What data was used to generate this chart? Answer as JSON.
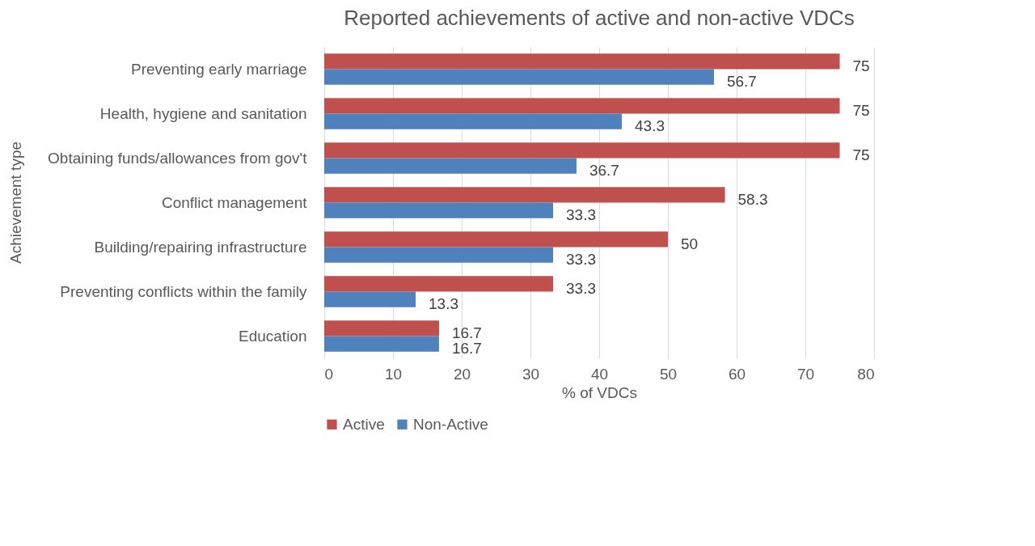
{
  "chart_data": {
    "type": "bar",
    "orientation": "horizontal",
    "title": "Reported achievements of active and non-active VDCs",
    "xlabel": "% of VDCs",
    "ylabel": "Achievement type",
    "categories": [
      "Preventing early marriage",
      "Health, hygiene and sanitation",
      "Obtaining funds/allowances from gov't",
      "Conflict management",
      "Building/repairing infrastructure",
      "Preventing conflicts within the family",
      "Education"
    ],
    "series": [
      {
        "name": "Active",
        "color": "#c0504d",
        "values": [
          75,
          75,
          75,
          58.3,
          50,
          33.3,
          16.7
        ]
      },
      {
        "name": "Non-Active",
        "color": "#4f81bd",
        "values": [
          56.7,
          43.3,
          36.7,
          33.3,
          33.3,
          13.3,
          16.7
        ]
      }
    ],
    "xlim": [
      0,
      80
    ],
    "xticks": [
      0,
      10,
      20,
      30,
      40,
      50,
      60,
      70,
      80
    ],
    "grid": "x",
    "legend": "bottom left",
    "data_labels": true
  }
}
